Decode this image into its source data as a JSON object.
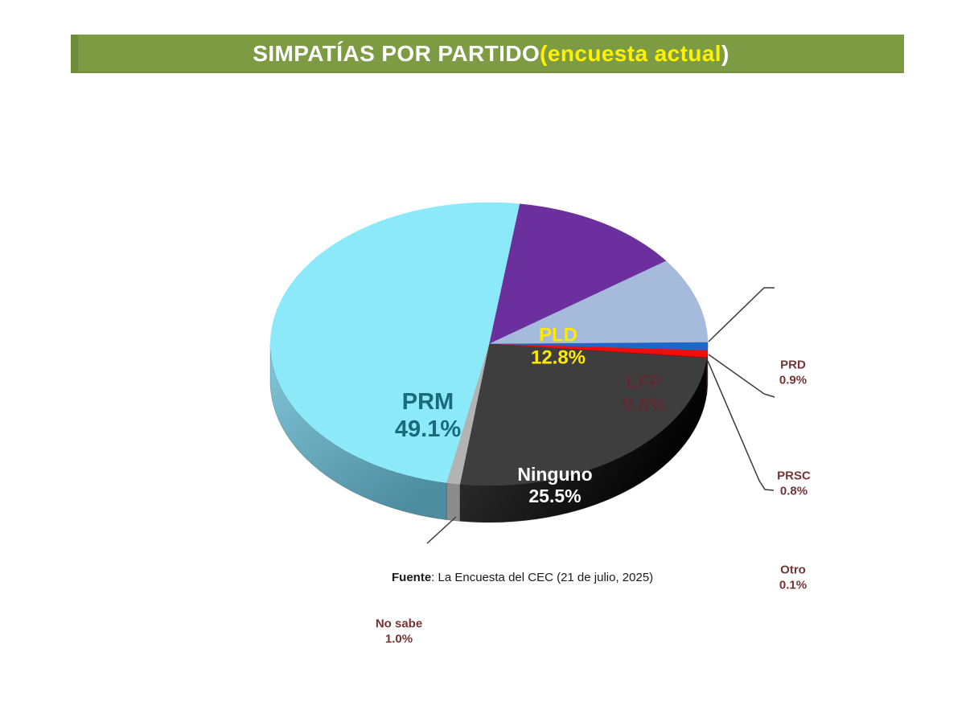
{
  "header": {
    "title_main": "SIMPATÍAS POR PARTIDO ",
    "title_highlight": "(encuesta actual",
    "title_close": ")",
    "bar_color": "#7D9B42",
    "title_text_color": "#FFFFFF",
    "highlight_color": "#FFF200"
  },
  "footer": {
    "source_label": "Fuente",
    "source_rest": ": La Encuesta del CEC (21 de julio, 2025)"
  },
  "chart_data": {
    "type": "pie",
    "title": "SIMPATÍAS POR PARTIDO (encuesta actual)",
    "unit": "%",
    "style": "3d-pie",
    "start_angle_deg": 8,
    "total": 100,
    "slices": [
      {
        "label": "PLD",
        "value": 12.8,
        "value_label": "12.8%",
        "color": "#6C2F9E",
        "side_color": "#4C1F73",
        "label_color": "#FFE900",
        "label_style": "inside"
      },
      {
        "label": "LFP",
        "value": 9.8,
        "value_label": "9.8%",
        "color": "#A6BADC",
        "side_color": "#7A93BD",
        "label_color": "#5C2B33",
        "label_style": "inside"
      },
      {
        "label": "PRD",
        "value": 0.9,
        "value_label": "0.9%",
        "color": "#1D67C9",
        "side_color": "#124A95",
        "label_color": "#733437",
        "label_style": "callout"
      },
      {
        "label": "PRSC",
        "value": 0.8,
        "value_label": "0.8%",
        "color": "#F20D0D",
        "side_color": "#AD0808",
        "label_color": "#733437",
        "label_style": "callout"
      },
      {
        "label": "Otro",
        "value": 0.1,
        "value_label": "0.1%",
        "color": "#7E1113",
        "side_color": "#5E0D0E",
        "label_color": "#733437",
        "label_style": "callout"
      },
      {
        "label": "Ninguno",
        "value": 25.5,
        "value_label": "25.5%",
        "color": "#3E3E3E",
        "side_color": "#141414",
        "label_color": "#FFFFFF",
        "label_style": "inside"
      },
      {
        "label": "No sabe",
        "value": 1.0,
        "value_label": "1.0%",
        "color": "#B3B3B3",
        "side_color": "#8C8C8C",
        "label_color": "#733437",
        "label_style": "callout"
      },
      {
        "label": "PRM",
        "value": 49.1,
        "value_label": "49.1%",
        "color": "#8CE9FA",
        "side_color": "#589DB1",
        "label_color": "#196A7A",
        "label_style": "inside"
      }
    ]
  }
}
